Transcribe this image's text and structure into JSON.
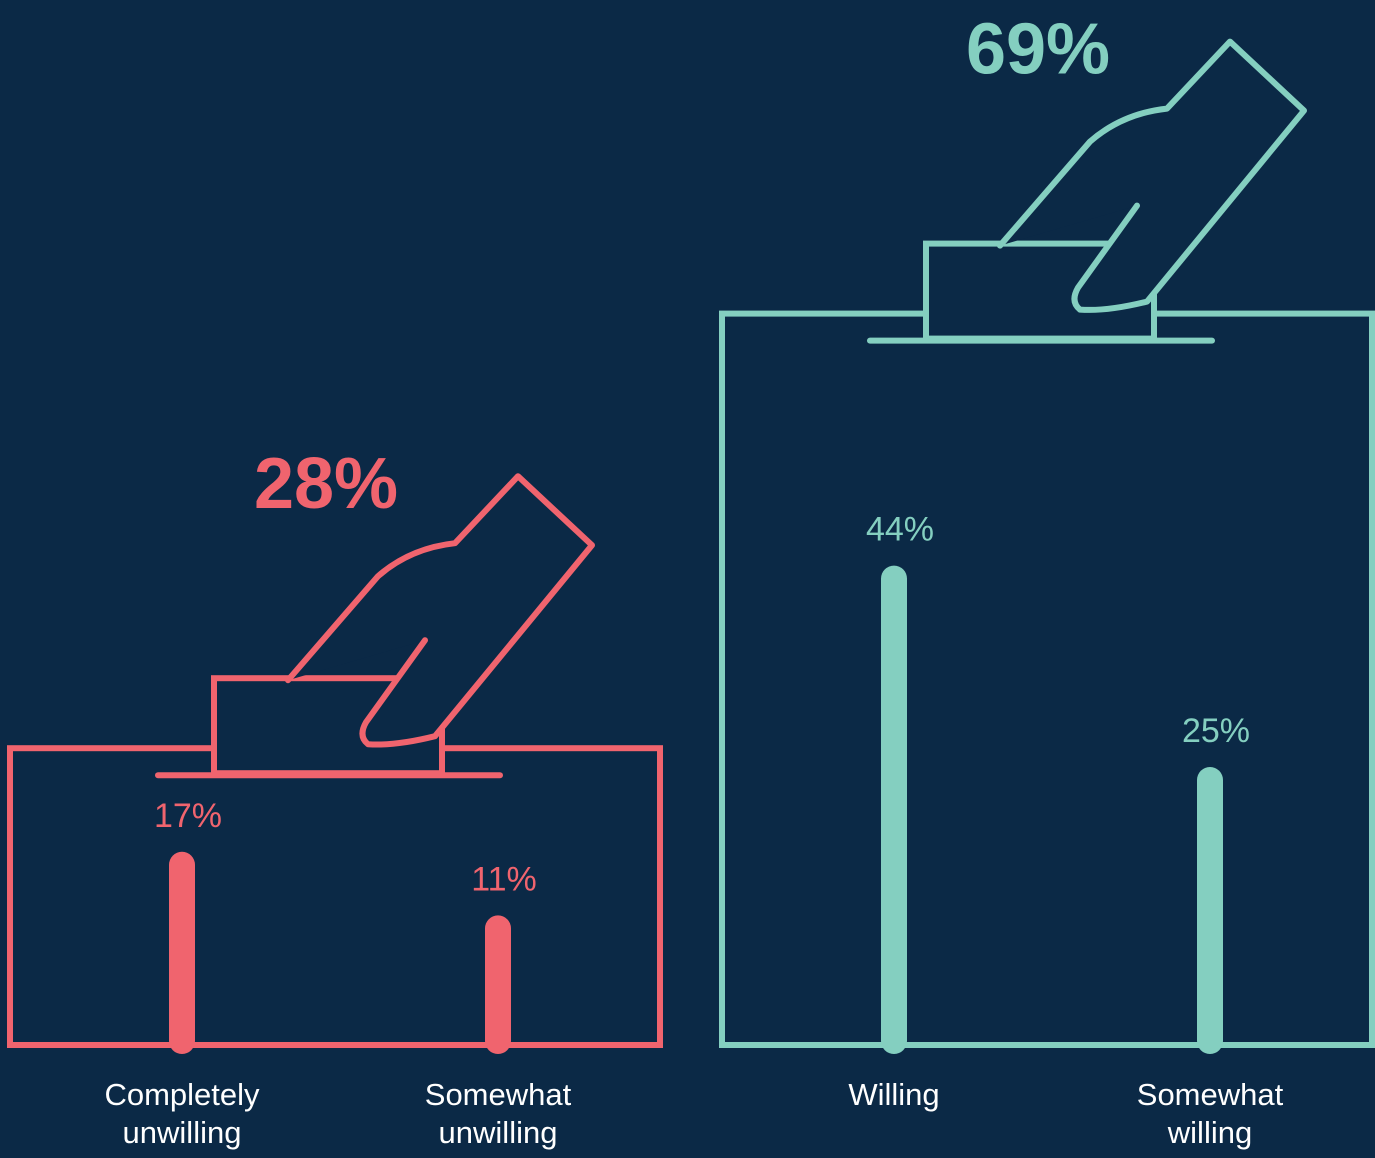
{
  "chart_data": {
    "type": "ballot-bar",
    "groups": [
      {
        "total": 28,
        "total_label": "28%",
        "color": "#f0646e",
        "categories": [
          "Completely unwilling",
          "Somewhat unwilling"
        ],
        "values": [
          17,
          11
        ],
        "value_labels": [
          "17%",
          "11%"
        ]
      },
      {
        "total": 69,
        "total_label": "69%",
        "color": "#84cfc0",
        "categories": [
          "Willing",
          "Somewhat willing"
        ],
        "values": [
          44,
          25
        ],
        "value_labels": [
          "44%",
          "25%"
        ]
      }
    ]
  }
}
